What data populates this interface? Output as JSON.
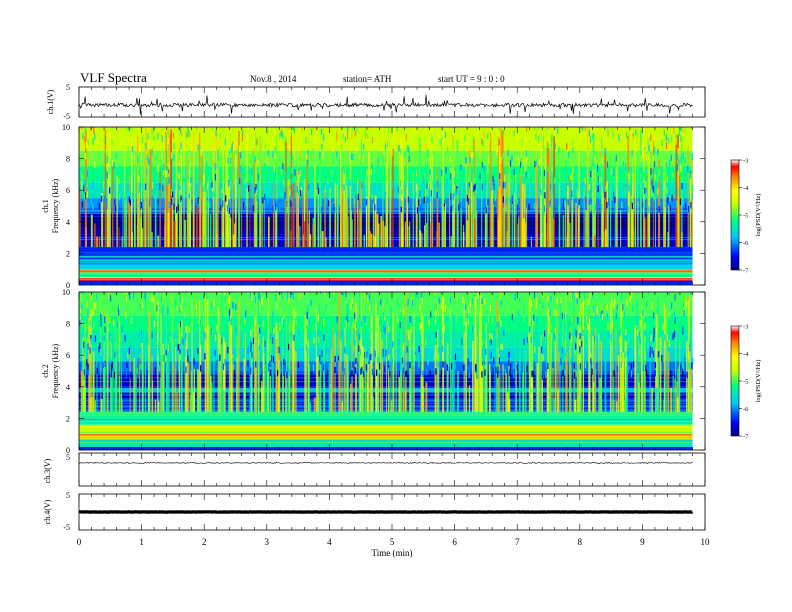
{
  "header": {
    "title": "VLF  Spectra",
    "date": "Nov.8  , 2014",
    "station": "station= ATH",
    "start_time": "start  UT  =   9  : 0  : 0"
  },
  "chart_data": [
    {
      "type": "line",
      "id": "ch1-waveform",
      "ylabel": "ch.1(V)",
      "ylim": [
        -5,
        5
      ],
      "yticks": [
        "5",
        "-5"
      ],
      "series": [
        {
          "values_note_baseline": -1,
          "baseline": -1,
          "noise_amplitude": 0.6,
          "spike_amplitude": 3
        }
      ],
      "xlim": [
        0,
        10
      ]
    },
    {
      "type": "heatmap",
      "id": "ch1-spectrogram",
      "ylabel_channel": "ch.1",
      "ylabel": "Frequency  (kHz)",
      "ylim": [
        0,
        10
      ],
      "yticks": [
        "0",
        "2",
        "4",
        "6",
        "8",
        "10"
      ],
      "xlim": [
        0,
        10
      ],
      "data_end_time": 9.8,
      "colorbar": {
        "label": "log(PSD(V²/Hz)",
        "range": [
          -7,
          -3
        ],
        "ticks": [
          "-7",
          "-6",
          "-5",
          "-4",
          "-3"
        ]
      },
      "bands": [
        {
          "from": 0,
          "to": 0.25,
          "level": -6.3
        },
        {
          "from": 0.25,
          "to": 0.5,
          "level": -3.2
        },
        {
          "from": 0.5,
          "to": 0.8,
          "level": -5.2
        },
        {
          "from": 0.8,
          "to": 1.0,
          "level": -3.6
        },
        {
          "from": 1.0,
          "to": 1.3,
          "level": -5.8
        },
        {
          "from": 1.3,
          "to": 1.8,
          "level": -6.0
        },
        {
          "from": 1.8,
          "to": 2.4,
          "level": -6.3
        },
        {
          "from": 2.4,
          "to": 3.2,
          "level": -6.6
        },
        {
          "from": 3.2,
          "to": 4.5,
          "level": -6.9
        },
        {
          "from": 4.5,
          "to": 5.5,
          "level": -6.0
        },
        {
          "from": 5.5,
          "to": 6.5,
          "level": -5.5
        },
        {
          "from": 6.5,
          "to": 7.5,
          "level": -5.2
        },
        {
          "from": 7.5,
          "to": 8.5,
          "level": -4.9
        },
        {
          "from": 8.5,
          "to": 10,
          "level": -4.6
        }
      ]
    },
    {
      "type": "heatmap",
      "id": "ch2-spectrogram",
      "ylabel_channel": "ch.2",
      "ylabel": "Frequency  (kHz)",
      "ylim": [
        0,
        10
      ],
      "yticks": [
        "0",
        "2",
        "4",
        "6",
        "8",
        "10"
      ],
      "xlim": [
        0,
        10
      ],
      "data_end_time": 9.8,
      "colorbar": {
        "label": "log(PSD(V²/Hz)",
        "range": [
          -7,
          -3
        ],
        "ticks": [
          "-7",
          "-6",
          "-5",
          "-4",
          "-3"
        ]
      },
      "bands": [
        {
          "from": 0,
          "to": 0.2,
          "level": -6.3
        },
        {
          "from": 0.2,
          "to": 0.6,
          "level": -5.6
        },
        {
          "from": 0.6,
          "to": 1.0,
          "level": -3.8
        },
        {
          "from": 1.0,
          "to": 1.6,
          "level": -4.6
        },
        {
          "from": 1.6,
          "to": 2.4,
          "level": -5.4
        },
        {
          "from": 2.4,
          "to": 3.2,
          "level": -6.2
        },
        {
          "from": 3.2,
          "to": 3.6,
          "level": -6.6
        },
        {
          "from": 3.6,
          "to": 4.0,
          "level": -5.9
        },
        {
          "from": 4.0,
          "to": 4.8,
          "level": -6.7
        },
        {
          "from": 4.8,
          "to": 5.6,
          "level": -6.1
        },
        {
          "from": 5.6,
          "to": 6.5,
          "level": -5.6
        },
        {
          "from": 6.5,
          "to": 7.5,
          "level": -5.4
        },
        {
          "from": 7.5,
          "to": 8.5,
          "level": -5.2
        },
        {
          "from": 8.5,
          "to": 10,
          "level": -5.0
        }
      ]
    },
    {
      "type": "line",
      "id": "ch3-waveform",
      "ylabel": "ch.3(V)",
      "ylim": [
        -5,
        5
      ],
      "yticks": [
        "5"
      ],
      "series": [
        {
          "baseline": 2,
          "noise_amplitude": 0.15
        }
      ],
      "xlim": [
        0,
        10
      ]
    },
    {
      "type": "line",
      "id": "ch4-waveform",
      "ylabel": "ch.4(V)",
      "ylim": [
        -5,
        5
      ],
      "yticks": [
        "5",
        "-5"
      ],
      "series": [
        {
          "baseline": 0,
          "noise_amplitude": 0.05
        }
      ],
      "xlim": [
        0,
        10
      ]
    }
  ],
  "x_axis": {
    "label": "Time  (min)",
    "ticks": [
      "0",
      "1",
      "2",
      "3",
      "4",
      "5",
      "6",
      "7",
      "8",
      "9",
      "10"
    ]
  }
}
